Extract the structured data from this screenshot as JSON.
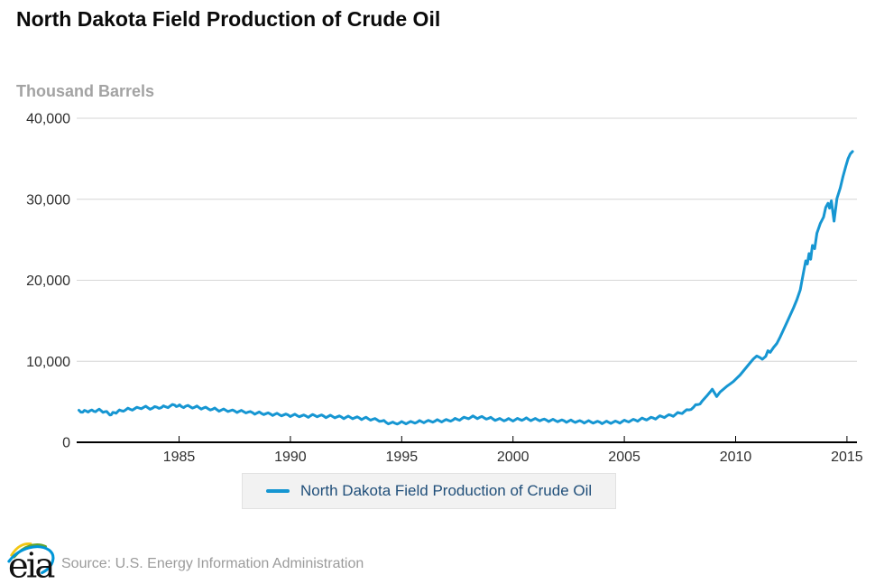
{
  "legend": {
    "label": "North Dakota Field Production of Crude Oil"
  },
  "footer": {
    "logo_text": "eia",
    "source": "Source: U.S. Energy Information Administration"
  },
  "colors": {
    "line": "#1696d2",
    "grid": "#d6d6d6",
    "axis": "#000000",
    "tick-label": "#2f2f2f",
    "axis-title": "#a3a3a3",
    "legend-text": "#1f4e79",
    "legend-bg": "#f2f2f2",
    "legend-border": "#e2e2e2",
    "source-text": "#9b9b9b",
    "logo-yellow": "#f2c714",
    "logo-green": "#61a431",
    "logo-blue": "#0096d7",
    "title-color": "#0a0a0a"
  },
  "chart_data": {
    "type": "line",
    "title": "North Dakota Field Production of Crude Oil",
    "ylabel": "Thousand Barrels",
    "xlabel": "",
    "grid": "horizontal",
    "legend_position": "bottom",
    "xlim": [
      1980.4,
      2015.45
    ],
    "ylim": [
      0,
      40000
    ],
    "x_ticks": [
      1985,
      1990,
      1995,
      2000,
      2005,
      2010,
      2015
    ],
    "y_ticks": [
      0,
      10000,
      20000,
      30000,
      40000
    ],
    "y_tick_labels": [
      "0",
      "10,000",
      "20,000",
      "30,000",
      "40,000"
    ],
    "series": [
      {
        "name": "North Dakota Field Production of Crude Oil",
        "color": "#1696d2",
        "points": [
          [
            1980.5,
            3950
          ],
          [
            1980.67,
            3720
          ],
          [
            1980.83,
            3850
          ],
          [
            1981,
            3900
          ],
          [
            1981.17,
            3820
          ],
          [
            1981.33,
            3950
          ],
          [
            1981.5,
            3900
          ],
          [
            1981.67,
            3780
          ],
          [
            1981.83,
            3550
          ],
          [
            1981.95,
            3400
          ],
          [
            1982.1,
            3650
          ],
          [
            1982.25,
            3820
          ],
          [
            1982.4,
            3900
          ],
          [
            1982.6,
            4000
          ],
          [
            1982.8,
            4080
          ],
          [
            1983,
            4150
          ],
          [
            1983.2,
            4230
          ],
          [
            1983.4,
            4300
          ],
          [
            1983.6,
            4270
          ],
          [
            1983.8,
            4200
          ],
          [
            1984,
            4330
          ],
          [
            1984.2,
            4280
          ],
          [
            1984.4,
            4380
          ],
          [
            1984.6,
            4480
          ],
          [
            1984.8,
            4590
          ],
          [
            1984.95,
            4480
          ],
          [
            1985.1,
            4420
          ],
          [
            1985.3,
            4460
          ],
          [
            1985.5,
            4380
          ],
          [
            1985.7,
            4320
          ],
          [
            1985.9,
            4280
          ],
          [
            1986.1,
            4240
          ],
          [
            1986.3,
            4150
          ],
          [
            1986.5,
            4080
          ],
          [
            1986.7,
            4020
          ],
          [
            1986.9,
            3980
          ],
          [
            1987.1,
            3950
          ],
          [
            1987.3,
            3900
          ],
          [
            1987.5,
            3860
          ],
          [
            1987.7,
            3820
          ],
          [
            1987.9,
            3780
          ],
          [
            1988.1,
            3720
          ],
          [
            1988.3,
            3660
          ],
          [
            1988.5,
            3610
          ],
          [
            1988.7,
            3570
          ],
          [
            1988.9,
            3530
          ],
          [
            1989.1,
            3500
          ],
          [
            1989.3,
            3450
          ],
          [
            1989.5,
            3410
          ],
          [
            1989.7,
            3380
          ],
          [
            1989.9,
            3360
          ],
          [
            1990.1,
            3330
          ],
          [
            1990.3,
            3300
          ],
          [
            1990.5,
            3270
          ],
          [
            1990.7,
            3240
          ],
          [
            1990.9,
            3260
          ],
          [
            1991.1,
            3300
          ],
          [
            1991.3,
            3280
          ],
          [
            1991.5,
            3230
          ],
          [
            1991.7,
            3200
          ],
          [
            1991.9,
            3170
          ],
          [
            1992.1,
            3140
          ],
          [
            1992.3,
            3110
          ],
          [
            1992.5,
            3090
          ],
          [
            1992.7,
            3060
          ],
          [
            1992.9,
            3030
          ],
          [
            1993.1,
            3000
          ],
          [
            1993.3,
            2960
          ],
          [
            1993.5,
            2900
          ],
          [
            1993.7,
            2840
          ],
          [
            1993.9,
            2760
          ],
          [
            1994.1,
            2620
          ],
          [
            1994.3,
            2450
          ],
          [
            1994.5,
            2380
          ],
          [
            1994.7,
            2350
          ],
          [
            1994.9,
            2380
          ],
          [
            1995.1,
            2410
          ],
          [
            1995.3,
            2430
          ],
          [
            1995.5,
            2460
          ],
          [
            1995.7,
            2500
          ],
          [
            1995.9,
            2540
          ],
          [
            1996.1,
            2570
          ],
          [
            1996.3,
            2590
          ],
          [
            1996.5,
            2620
          ],
          [
            1996.7,
            2640
          ],
          [
            1996.9,
            2670
          ],
          [
            1997.1,
            2700
          ],
          [
            1997.3,
            2750
          ],
          [
            1997.5,
            2820
          ],
          [
            1997.7,
            2920
          ],
          [
            1997.9,
            3000
          ],
          [
            1998.1,
            3060
          ],
          [
            1998.3,
            3090
          ],
          [
            1998.5,
            3070
          ],
          [
            1998.7,
            3020
          ],
          [
            1998.9,
            2950
          ],
          [
            1999.1,
            2880
          ],
          [
            1999.3,
            2820
          ],
          [
            1999.5,
            2780
          ],
          [
            1999.7,
            2760
          ],
          [
            1999.9,
            2770
          ],
          [
            2000.1,
            2790
          ],
          [
            2000.3,
            2820
          ],
          [
            2000.5,
            2840
          ],
          [
            2000.7,
            2830
          ],
          [
            2000.9,
            2810
          ],
          [
            2001.1,
            2790
          ],
          [
            2001.3,
            2770
          ],
          [
            2001.5,
            2740
          ],
          [
            2001.7,
            2710
          ],
          [
            2001.9,
            2680
          ],
          [
            2002.1,
            2660
          ],
          [
            2002.3,
            2640
          ],
          [
            2002.5,
            2610
          ],
          [
            2002.7,
            2590
          ],
          [
            2002.9,
            2570
          ],
          [
            2003.1,
            2550
          ],
          [
            2003.3,
            2530
          ],
          [
            2003.5,
            2510
          ],
          [
            2003.7,
            2490
          ],
          [
            2003.9,
            2470
          ],
          [
            2004.1,
            2450
          ],
          [
            2004.3,
            2460
          ],
          [
            2004.5,
            2480
          ],
          [
            2004.7,
            2510
          ],
          [
            2004.9,
            2550
          ],
          [
            2005.1,
            2610
          ],
          [
            2005.3,
            2670
          ],
          [
            2005.5,
            2740
          ],
          [
            2005.7,
            2810
          ],
          [
            2005.9,
            2860
          ],
          [
            2006.1,
            2920
          ],
          [
            2006.3,
            3000
          ],
          [
            2006.5,
            3080
          ],
          [
            2006.7,
            3160
          ],
          [
            2006.9,
            3240
          ],
          [
            2007.1,
            3330
          ],
          [
            2007.3,
            3440
          ],
          [
            2007.5,
            3600
          ],
          [
            2007.7,
            3800
          ],
          [
            2007.9,
            4000
          ],
          [
            2008.1,
            4300
          ],
          [
            2008.3,
            4650
          ],
          [
            2008.5,
            5100
          ],
          [
            2008.7,
            5700
          ],
          [
            2008.85,
            6200
          ],
          [
            2008.95,
            6550
          ],
          [
            2009.05,
            6100
          ],
          [
            2009.15,
            5650
          ],
          [
            2009.3,
            6200
          ],
          [
            2009.45,
            6550
          ],
          [
            2009.6,
            6900
          ],
          [
            2009.75,
            7200
          ],
          [
            2009.9,
            7500
          ],
          [
            2010.05,
            7900
          ],
          [
            2010.2,
            8300
          ],
          [
            2010.35,
            8800
          ],
          [
            2010.5,
            9300
          ],
          [
            2010.65,
            9800
          ],
          [
            2010.8,
            10300
          ],
          [
            2010.95,
            10650
          ],
          [
            2011.1,
            10450
          ],
          [
            2011.2,
            10250
          ],
          [
            2011.35,
            10600
          ],
          [
            2011.45,
            11300
          ],
          [
            2011.55,
            11100
          ],
          [
            2011.7,
            11700
          ],
          [
            2011.85,
            12200
          ],
          [
            2012,
            13000
          ],
          [
            2012.15,
            13900
          ],
          [
            2012.3,
            14800
          ],
          [
            2012.45,
            15700
          ],
          [
            2012.6,
            16600
          ],
          [
            2012.75,
            17600
          ],
          [
            2012.9,
            18800
          ],
          [
            2013.05,
            21000
          ],
          [
            2013.15,
            22400
          ],
          [
            2013.22,
            22000
          ],
          [
            2013.3,
            23300
          ],
          [
            2013.37,
            22600
          ],
          [
            2013.45,
            24300
          ],
          [
            2013.55,
            23900
          ],
          [
            2013.65,
            25800
          ],
          [
            2013.8,
            27000
          ],
          [
            2013.95,
            27800
          ],
          [
            2014.05,
            29000
          ],
          [
            2014.15,
            29500
          ],
          [
            2014.22,
            28900
          ],
          [
            2014.3,
            29800
          ],
          [
            2014.42,
            27300
          ],
          [
            2014.55,
            30100
          ],
          [
            2014.7,
            31400
          ],
          [
            2014.82,
            32800
          ],
          [
            2014.95,
            34100
          ],
          [
            2015.05,
            35000
          ],
          [
            2015.15,
            35600
          ],
          [
            2015.25,
            35900
          ]
        ]
      }
    ]
  }
}
